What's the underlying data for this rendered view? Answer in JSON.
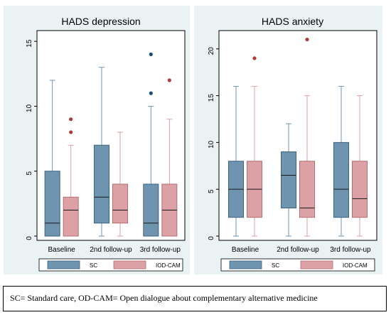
{
  "chart_data": [
    {
      "type": "box",
      "title": "HADS depression",
      "categories": [
        "Baseline",
        "2nd follow-up",
        "3rd follow-up"
      ],
      "ylim": [
        0,
        15.5
      ],
      "yticks": [
        0,
        5,
        10,
        15
      ],
      "grid": false,
      "legend": "bottom",
      "series": [
        {
          "name": "SC",
          "color": "#6f94b0",
          "boxes": [
            {
              "min": 0,
              "q1": 0,
              "median": 1,
              "q3": 5,
              "max": 12,
              "outliers": []
            },
            {
              "min": 0,
              "q1": 1,
              "median": 3,
              "q3": 7,
              "max": 13,
              "outliers": []
            },
            {
              "min": 0,
              "q1": 0,
              "median": 1,
              "q3": 4,
              "max": 10,
              "outliers": [
                11,
                14
              ]
            }
          ]
        },
        {
          "name": "IOD-CAM",
          "color": "#dca1a4",
          "boxes": [
            {
              "min": 0,
              "q1": 0,
              "median": 2,
              "q3": 3,
              "max": 7,
              "outliers": [
                8,
                9
              ]
            },
            {
              "min": 0,
              "q1": 1,
              "median": 2,
              "q3": 4,
              "max": 8,
              "outliers": []
            },
            {
              "min": 0,
              "q1": 0,
              "median": 2,
              "q3": 4,
              "max": 9,
              "outliers": [
                12
              ]
            }
          ]
        }
      ]
    },
    {
      "type": "box",
      "title": "HADS anxiety",
      "categories": [
        "Baseline",
        "2nd follow-up",
        "3rd follow-up"
      ],
      "ylim": [
        0,
        21.5
      ],
      "yticks": [
        0,
        5,
        10,
        15,
        20
      ],
      "grid": false,
      "legend": "bottom",
      "series": [
        {
          "name": "SC",
          "color": "#6f94b0",
          "boxes": [
            {
              "min": 0,
              "q1": 2,
              "median": 5,
              "q3": 8,
              "max": 16,
              "outliers": []
            },
            {
              "min": 0,
              "q1": 3,
              "median": 6.5,
              "q3": 9,
              "max": 12,
              "outliers": []
            },
            {
              "min": 0,
              "q1": 2,
              "median": 5,
              "q3": 10,
              "max": 16,
              "outliers": []
            }
          ]
        },
        {
          "name": "IOD-CAM",
          "color": "#dca1a4",
          "boxes": [
            {
              "min": 0,
              "q1": 2,
              "median": 5,
              "q3": 8,
              "max": 16,
              "outliers": [
                19
              ]
            },
            {
              "min": 0,
              "q1": 2,
              "median": 3,
              "q3": 8,
              "max": 15,
              "outliers": [
                21
              ]
            },
            {
              "min": 0,
              "q1": 2,
              "median": 4,
              "q3": 8,
              "max": 15,
              "outliers": []
            }
          ]
        }
      ]
    }
  ],
  "colors": {
    "panel_bg": "#eaf2f3",
    "plot_bg": "#ffffff",
    "sc_outlier": "#1a4f7a",
    "iod_outlier": "#b03a3e"
  },
  "caption": "SC= Standard care, OD-CAM= Open dialogue about complementary alternative medicine"
}
